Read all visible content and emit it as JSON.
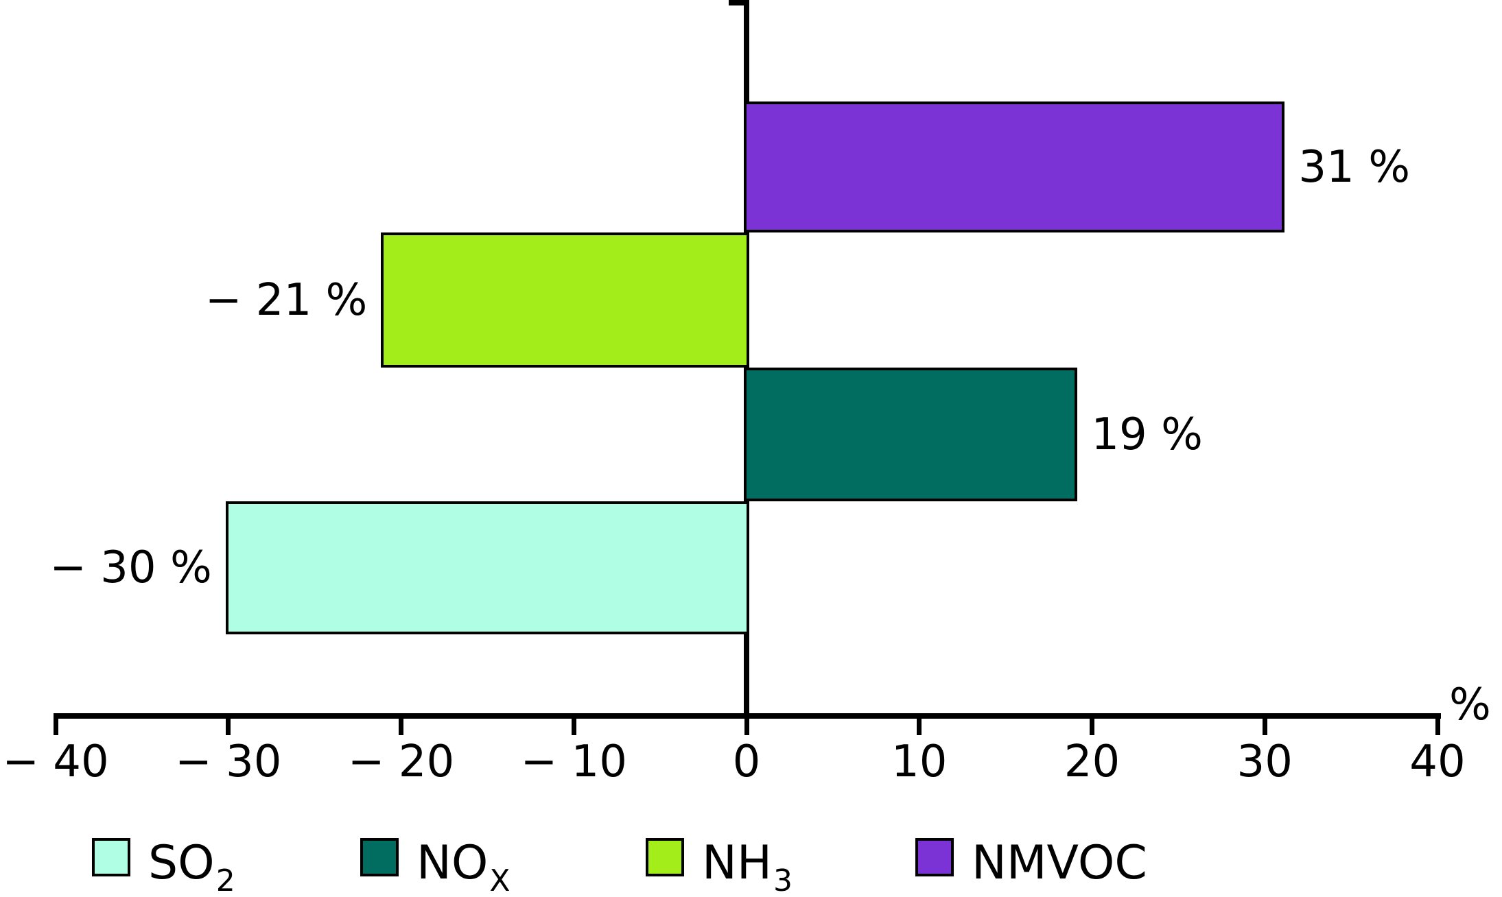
{
  "chart_data": {
    "type": "bar",
    "orientation": "horizontal",
    "axis_unit_label": "%",
    "xlim": [
      -40,
      40
    ],
    "grid": false,
    "legend_position": "bottom",
    "x_ticks": [
      {
        "value": -40,
        "label": "− 40"
      },
      {
        "value": -30,
        "label": "− 30"
      },
      {
        "value": -20,
        "label": "− 20"
      },
      {
        "value": -10,
        "label": "− 10"
      },
      {
        "value": 0,
        "label": "0"
      },
      {
        "value": 10,
        "label": "10"
      },
      {
        "value": 20,
        "label": "20"
      },
      {
        "value": 30,
        "label": "30"
      },
      {
        "value": 40,
        "label": "40"
      }
    ],
    "bars": [
      {
        "name": "NMVOC",
        "value": 31,
        "label": "31 %",
        "color": "#7C33D6"
      },
      {
        "name": "NH3",
        "value": -21,
        "label": "− 21 %",
        "color": "#A3EE1A"
      },
      {
        "name": "NOx",
        "value": 19,
        "label": "19 %",
        "color": "#016C60"
      },
      {
        "name": "SO2",
        "value": -30,
        "label": "− 30 %",
        "color": "#B0FFE5"
      }
    ],
    "legend": [
      {
        "main": "SO",
        "sub": "2",
        "color": "#B0FFE5"
      },
      {
        "main": "NO",
        "sub": "X",
        "color": "#016C60"
      },
      {
        "main": "NH",
        "sub": "3",
        "color": "#A3EE1A"
      },
      {
        "main": "NMVOC",
        "sub": "",
        "color": "#7C33D6"
      }
    ]
  }
}
